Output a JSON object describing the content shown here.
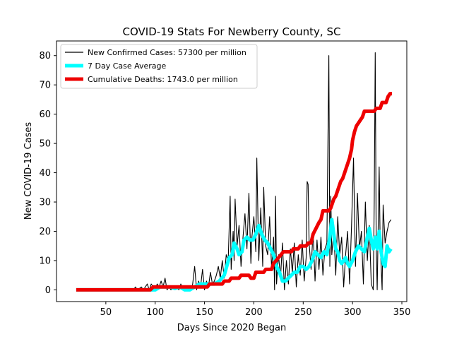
{
  "chart_data": {
    "type": "line",
    "title": "COVID-19 Stats For Newberry County, SC",
    "xlabel": "Days Since 2020 Began",
    "ylabel": "New COVID-19 Cases",
    "xlim": [
      0,
      355
    ],
    "ylim": [
      -4,
      85
    ],
    "xticks": [
      50,
      100,
      150,
      200,
      250,
      300,
      350
    ],
    "yticks": [
      0,
      10,
      20,
      30,
      40,
      50,
      60,
      70,
      80
    ],
    "grid": false,
    "legend_position": "top-left",
    "series": [
      {
        "name": "New Confirmed Cases: 57300 per million",
        "color": "#000000",
        "points": [
          [
            20,
            0
          ],
          [
            30,
            0
          ],
          [
            40,
            0
          ],
          [
            50,
            0
          ],
          [
            60,
            0
          ],
          [
            70,
            0
          ],
          [
            78,
            0
          ],
          [
            80,
            1
          ],
          [
            82,
            0
          ],
          [
            86,
            1
          ],
          [
            88,
            0
          ],
          [
            92,
            2
          ],
          [
            94,
            0
          ],
          [
            96,
            2
          ],
          [
            98,
            1
          ],
          [
            100,
            0
          ],
          [
            102,
            2
          ],
          [
            104,
            1
          ],
          [
            106,
            3
          ],
          [
            108,
            1
          ],
          [
            110,
            4
          ],
          [
            112,
            0
          ],
          [
            114,
            1
          ],
          [
            116,
            0
          ],
          [
            118,
            1
          ],
          [
            120,
            0
          ],
          [
            122,
            1
          ],
          [
            124,
            0
          ],
          [
            126,
            2
          ],
          [
            128,
            0
          ],
          [
            130,
            1
          ],
          [
            132,
            0
          ],
          [
            134,
            1
          ],
          [
            136,
            0
          ],
          [
            138,
            2
          ],
          [
            140,
            8
          ],
          [
            142,
            0
          ],
          [
            144,
            3
          ],
          [
            146,
            1
          ],
          [
            148,
            7
          ],
          [
            150,
            0
          ],
          [
            152,
            3
          ],
          [
            154,
            1
          ],
          [
            156,
            6
          ],
          [
            158,
            2
          ],
          [
            160,
            3
          ],
          [
            162,
            5
          ],
          [
            164,
            8
          ],
          [
            166,
            4
          ],
          [
            168,
            10
          ],
          [
            170,
            4
          ],
          [
            172,
            12
          ],
          [
            174,
            10
          ],
          [
            176,
            32
          ],
          [
            177,
            7
          ],
          [
            179,
            20
          ],
          [
            180,
            10
          ],
          [
            181,
            31
          ],
          [
            183,
            15
          ],
          [
            185,
            22
          ],
          [
            187,
            8
          ],
          [
            189,
            18
          ],
          [
            191,
            26
          ],
          [
            193,
            14
          ],
          [
            195,
            33
          ],
          [
            197,
            9
          ],
          [
            198,
            18
          ],
          [
            200,
            25
          ],
          [
            202,
            13
          ],
          [
            203,
            45
          ],
          [
            205,
            10
          ],
          [
            207,
            28
          ],
          [
            209,
            8
          ],
          [
            210,
            35
          ],
          [
            212,
            15
          ],
          [
            214,
            12
          ],
          [
            216,
            25
          ],
          [
            218,
            7
          ],
          [
            220,
            18
          ],
          [
            221,
            0
          ],
          [
            222,
            32
          ],
          [
            223,
            2
          ],
          [
            225,
            12
          ],
          [
            227,
            4
          ],
          [
            229,
            16
          ],
          [
            231,
            0
          ],
          [
            233,
            10
          ],
          [
            235,
            2
          ],
          [
            237,
            14
          ],
          [
            239,
            6
          ],
          [
            241,
            16
          ],
          [
            243,
            1
          ],
          [
            245,
            12
          ],
          [
            247,
            5
          ],
          [
            249,
            17
          ],
          [
            251,
            3
          ],
          [
            253,
            11
          ],
          [
            254,
            37
          ],
          [
            255,
            36
          ],
          [
            256,
            16
          ],
          [
            258,
            7
          ],
          [
            260,
            20
          ],
          [
            262,
            3
          ],
          [
            264,
            17
          ],
          [
            266,
            7
          ],
          [
            268,
            18
          ],
          [
            270,
            5
          ],
          [
            272,
            14
          ],
          [
            274,
            16
          ],
          [
            276,
            80
          ],
          [
            277,
            8
          ],
          [
            278,
            32
          ],
          [
            279,
            12
          ],
          [
            281,
            20
          ],
          [
            283,
            5
          ],
          [
            285,
            25
          ],
          [
            287,
            12
          ],
          [
            289,
            18
          ],
          [
            291,
            1
          ],
          [
            293,
            12
          ],
          [
            295,
            20
          ],
          [
            297,
            2
          ],
          [
            299,
            22
          ],
          [
            301,
            45
          ],
          [
            303,
            8
          ],
          [
            305,
            33
          ],
          [
            307,
            14
          ],
          [
            309,
            20
          ],
          [
            311,
            2
          ],
          [
            313,
            30
          ],
          [
            315,
            10
          ],
          [
            317,
            22
          ],
          [
            319,
            2
          ],
          [
            321,
            0
          ],
          [
            322,
            30
          ],
          [
            323,
            81
          ],
          [
            324,
            15
          ],
          [
            325,
            0
          ],
          [
            327,
            42
          ],
          [
            328,
            16
          ],
          [
            330,
            0
          ],
          [
            331,
            29
          ],
          [
            333,
            16
          ],
          [
            335,
            20
          ],
          [
            337,
            23
          ],
          [
            339,
            24
          ]
        ]
      },
      {
        "name": "7 Day Case Average",
        "color": "#00ffff",
        "points": [
          [
            20,
            0
          ],
          [
            60,
            0
          ],
          [
            90,
            0
          ],
          [
            100,
            0
          ],
          [
            105,
            1
          ],
          [
            110,
            1
          ],
          [
            115,
            1
          ],
          [
            120,
            0.5
          ],
          [
            125,
            1
          ],
          [
            130,
            0
          ],
          [
            135,
            0
          ],
          [
            140,
            1
          ],
          [
            145,
            2
          ],
          [
            150,
            2
          ],
          [
            155,
            2
          ],
          [
            160,
            2
          ],
          [
            165,
            3
          ],
          [
            170,
            5
          ],
          [
            175,
            11
          ],
          [
            178,
            12
          ],
          [
            180,
            16
          ],
          [
            183,
            14
          ],
          [
            185,
            12
          ],
          [
            188,
            13
          ],
          [
            190,
            17
          ],
          [
            193,
            18
          ],
          [
            196,
            17
          ],
          [
            199,
            17
          ],
          [
            202,
            19
          ],
          [
            205,
            22
          ],
          [
            208,
            19
          ],
          [
            211,
            17
          ],
          [
            214,
            16
          ],
          [
            217,
            14
          ],
          [
            220,
            12
          ],
          [
            223,
            8
          ],
          [
            226,
            6
          ],
          [
            229,
            3
          ],
          [
            232,
            3
          ],
          [
            235,
            4
          ],
          [
            238,
            5
          ],
          [
            241,
            6
          ],
          [
            244,
            6
          ],
          [
            247,
            8
          ],
          [
            250,
            8
          ],
          [
            253,
            7
          ],
          [
            256,
            8
          ],
          [
            259,
            10
          ],
          [
            262,
            13
          ],
          [
            265,
            12
          ],
          [
            268,
            11
          ],
          [
            271,
            13
          ],
          [
            274,
            12
          ],
          [
            277,
            18
          ],
          [
            279,
            24
          ],
          [
            281,
            19
          ],
          [
            283,
            14
          ],
          [
            285,
            13
          ],
          [
            287,
            10
          ],
          [
            289,
            9
          ],
          [
            291,
            10
          ],
          [
            293,
            11
          ],
          [
            295,
            9
          ],
          [
            297,
            8
          ],
          [
            300,
            10
          ],
          [
            303,
            13
          ],
          [
            306,
            15
          ],
          [
            309,
            14
          ],
          [
            312,
            13
          ],
          [
            315,
            18
          ],
          [
            317,
            21
          ],
          [
            319,
            17
          ],
          [
            321,
            14
          ],
          [
            323,
            18
          ],
          [
            325,
            14
          ],
          [
            327,
            20
          ],
          [
            329,
            13
          ],
          [
            331,
            9
          ],
          [
            333,
            8
          ],
          [
            335,
            15
          ],
          [
            337,
            13
          ],
          [
            339,
            14
          ]
        ]
      },
      {
        "name": "Cumulative Deaths: 1743.0 per million",
        "color": "#ee0000",
        "points": [
          [
            20,
            0
          ],
          [
            60,
            0
          ],
          [
            95,
            0
          ],
          [
            98,
            1
          ],
          [
            150,
            1
          ],
          [
            153,
            1
          ],
          [
            155,
            2
          ],
          [
            168,
            2
          ],
          [
            170,
            3
          ],
          [
            175,
            3
          ],
          [
            177,
            4
          ],
          [
            185,
            4
          ],
          [
            187,
            5
          ],
          [
            195,
            5
          ],
          [
            197,
            4
          ],
          [
            200,
            4
          ],
          [
            202,
            6
          ],
          [
            210,
            6
          ],
          [
            212,
            7
          ],
          [
            218,
            7
          ],
          [
            220,
            9
          ],
          [
            225,
            11
          ],
          [
            230,
            13
          ],
          [
            238,
            13
          ],
          [
            240,
            14
          ],
          [
            245,
            14
          ],
          [
            247,
            15
          ],
          [
            253,
            15
          ],
          [
            255,
            16
          ],
          [
            258,
            16
          ],
          [
            260,
            19
          ],
          [
            263,
            21
          ],
          [
            266,
            23
          ],
          [
            268,
            24
          ],
          [
            270,
            27
          ],
          [
            276,
            27
          ],
          [
            278,
            28
          ],
          [
            281,
            31
          ],
          [
            283,
            32
          ],
          [
            285,
            34
          ],
          [
            288,
            37
          ],
          [
            290,
            38
          ],
          [
            293,
            41
          ],
          [
            295,
            43
          ],
          [
            297,
            45
          ],
          [
            299,
            48
          ],
          [
            300,
            51
          ],
          [
            302,
            54
          ],
          [
            304,
            56
          ],
          [
            306,
            57
          ],
          [
            308,
            58
          ],
          [
            310,
            59
          ],
          [
            312,
            61
          ],
          [
            322,
            61
          ],
          [
            324,
            62
          ],
          [
            328,
            62
          ],
          [
            330,
            64
          ],
          [
            334,
            64
          ],
          [
            336,
            66
          ],
          [
            338,
            67
          ],
          [
            340,
            67
          ]
        ]
      }
    ]
  }
}
